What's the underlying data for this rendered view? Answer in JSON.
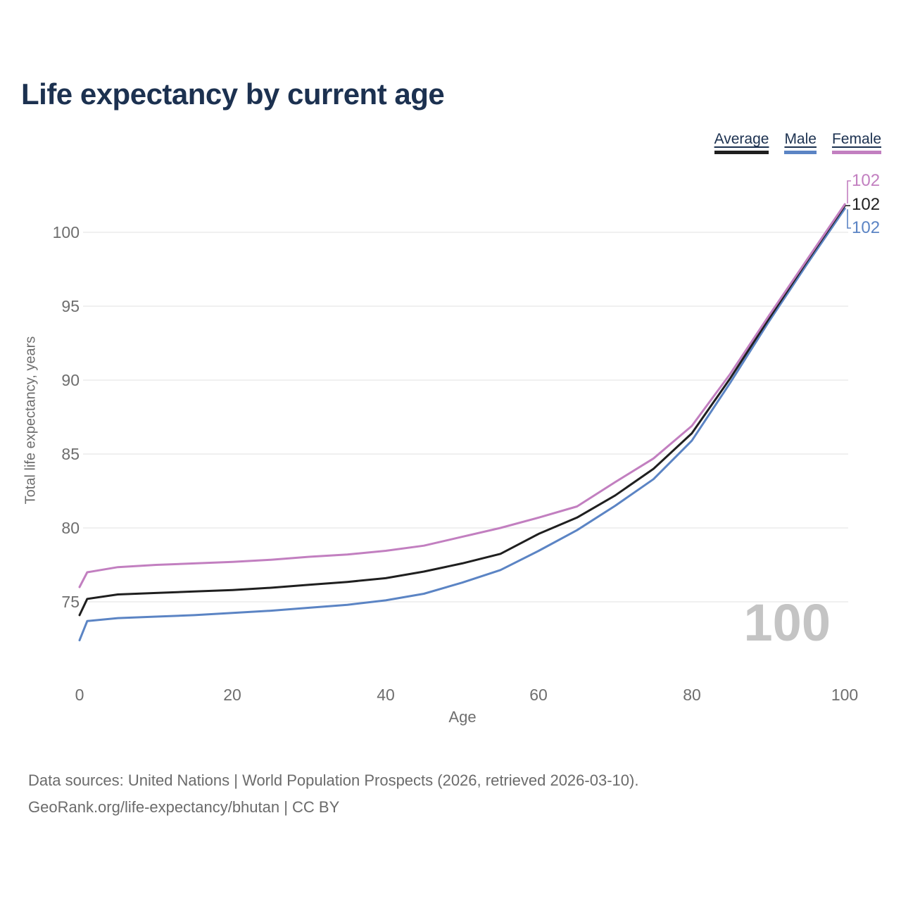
{
  "header": {
    "title": "Life expectancy by current age"
  },
  "legend": {
    "items": [
      {
        "label": "Average",
        "color": "#1f1f1f"
      },
      {
        "label": "Male",
        "color": "#5b84c4"
      },
      {
        "label": "Female",
        "color": "#c27fc0"
      }
    ]
  },
  "chart_data": {
    "type": "line",
    "title": "Life expectancy by current age",
    "xlabel": "Age",
    "ylabel": "Total life expectancy, years",
    "xlim": [
      0,
      100
    ],
    "ylim": [
      71.5,
      103
    ],
    "grid": "horizontal",
    "legend_position": "top-right",
    "x": [
      0,
      1,
      5,
      10,
      15,
      20,
      25,
      30,
      35,
      40,
      45,
      50,
      55,
      60,
      65,
      70,
      75,
      80,
      85,
      90,
      95,
      100
    ],
    "series": [
      {
        "name": "Male",
        "color": "#5b84c4",
        "values": [
          72.4,
          73.7,
          73.9,
          74.0,
          74.1,
          74.25,
          74.4,
          74.6,
          74.8,
          75.1,
          75.55,
          76.3,
          77.15,
          78.45,
          79.85,
          81.5,
          83.3,
          85.9,
          89.8,
          93.9,
          97.8,
          101.6
        ]
      },
      {
        "name": "Average",
        "color": "#1f1f1f",
        "values": [
          74.1,
          75.2,
          75.5,
          75.6,
          75.7,
          75.8,
          75.95,
          76.15,
          76.35,
          76.6,
          77.05,
          77.6,
          78.25,
          79.6,
          80.7,
          82.2,
          84.0,
          86.4,
          90.1,
          94.1,
          98.0,
          101.8
        ]
      },
      {
        "name": "Female",
        "color": "#c27fc0",
        "values": [
          76.0,
          77.0,
          77.35,
          77.5,
          77.6,
          77.7,
          77.85,
          78.05,
          78.2,
          78.45,
          78.8,
          79.4,
          80.0,
          80.7,
          81.45,
          83.1,
          84.7,
          86.9,
          90.4,
          94.3,
          98.1,
          101.9
        ]
      }
    ],
    "yticks": [
      100,
      95,
      90,
      85,
      80,
      75
    ],
    "ytick_labels": [
      "100",
      "95",
      "90",
      "85",
      "80",
      "75"
    ],
    "xticks": [
      0,
      20,
      40,
      60,
      80,
      100
    ],
    "xtick_labels": [
      "0",
      "20",
      "40",
      "60",
      "80",
      "100"
    ]
  },
  "end_labels": [
    {
      "text": "102",
      "series": "Female",
      "color": "#c27fc0"
    },
    {
      "text": "102",
      "series": "Average",
      "color": "#1f1f1f"
    },
    {
      "text": "102",
      "series": "Male",
      "color": "#5b84c4"
    }
  ],
  "watermark": "100",
  "footer": {
    "line1": "Data sources: United Nations | World Population Prospects (2026, retrieved 2026-03-10).",
    "line2": "GeoRank.org/life-expectancy/bhutan | CC BY"
  },
  "colors": {
    "title_text": "#1c3150",
    "axis_text": "#6e6e6e",
    "gridline": "#e7e7e7",
    "watermark": "#c4c4c4"
  }
}
